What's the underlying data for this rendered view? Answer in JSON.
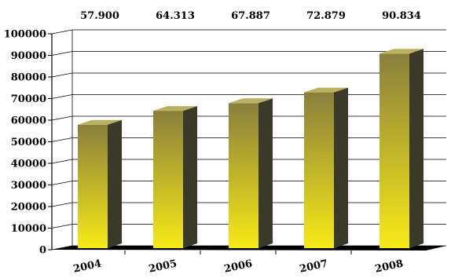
{
  "chart_data": {
    "type": "bar",
    "categories": [
      "2004",
      "2005",
      "2006",
      "2007",
      "2008"
    ],
    "values": [
      57900,
      64313,
      67887,
      72879,
      90834
    ],
    "data_labels": [
      "57.900",
      "64.313",
      "67.887",
      "72.879",
      "90.834"
    ],
    "title": "",
    "xlabel": "",
    "ylabel": "",
    "ylim": [
      0,
      100000
    ],
    "yticks": [
      0,
      10000,
      20000,
      30000,
      40000,
      50000,
      60000,
      70000,
      80000,
      90000,
      100000
    ],
    "grid": true,
    "legend": "none",
    "style": "3d-bar",
    "colors": {
      "bar_front_top": "#8a7f3c",
      "bar_front_bottom": "#f6ea16",
      "bar_side": "#3b3a2a",
      "bar_top": "#b9b060",
      "floor": "#000000",
      "grid": "#000000"
    }
  }
}
